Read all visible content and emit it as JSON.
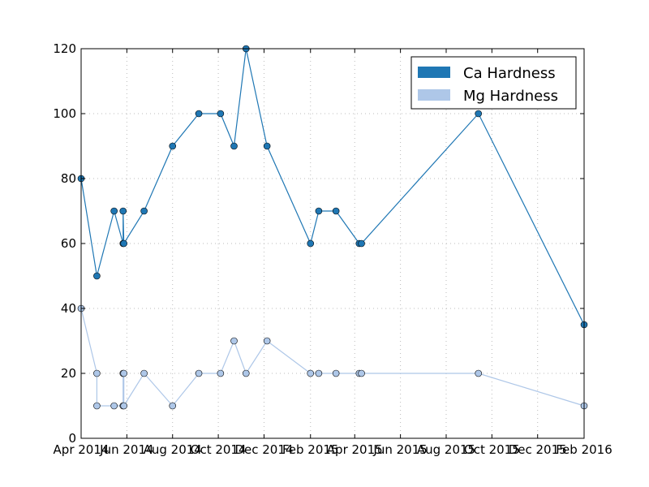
{
  "chart_data": {
    "type": "line",
    "title": "",
    "xlabel": "",
    "ylabel": "",
    "x_range": [
      "2014-04-01",
      "2016-02-01"
    ],
    "ylim": [
      0,
      120
    ],
    "y_ticks": [
      0,
      20,
      40,
      60,
      80,
      100,
      120
    ],
    "x_ticks": [
      {
        "date": "2014-04-01",
        "label": "Apr 2014"
      },
      {
        "date": "2014-06-01",
        "label": "Jun 2014"
      },
      {
        "date": "2014-08-01",
        "label": "Aug 2014"
      },
      {
        "date": "2014-10-01",
        "label": "Oct 2014"
      },
      {
        "date": "2014-12-01",
        "label": "Dec 2014"
      },
      {
        "date": "2015-02-01",
        "label": "Feb 2015"
      },
      {
        "date": "2015-04-01",
        "label": "Apr 2015"
      },
      {
        "date": "2015-06-01",
        "label": "Jun 2015"
      },
      {
        "date": "2015-08-01",
        "label": "Aug 2015"
      },
      {
        "date": "2015-10-01",
        "label": "Oct 2015"
      },
      {
        "date": "2015-12-01",
        "label": "Dec 2015"
      },
      {
        "date": "2016-02-01",
        "label": "Feb 2016"
      }
    ],
    "grid": true,
    "legend_position": "top-right",
    "series": [
      {
        "name": "Ca Hardness",
        "color": "#1f77b4",
        "points": [
          {
            "x": "2014-04-01",
            "y": 80
          },
          {
            "x": "2014-04-22",
            "y": 50
          },
          {
            "x": "2014-05-15",
            "y": 70
          },
          {
            "x": "2014-05-27",
            "y": 60
          },
          {
            "x": "2014-05-27",
            "y": 70
          },
          {
            "x": "2014-05-28",
            "y": 60
          },
          {
            "x": "2014-06-24",
            "y": 70
          },
          {
            "x": "2014-08-01",
            "y": 90
          },
          {
            "x": "2014-09-05",
            "y": 100
          },
          {
            "x": "2014-10-04",
            "y": 100
          },
          {
            "x": "2014-10-22",
            "y": 90
          },
          {
            "x": "2014-11-07",
            "y": 120
          },
          {
            "x": "2014-12-05",
            "y": 90
          },
          {
            "x": "2015-02-01",
            "y": 60
          },
          {
            "x": "2015-02-12",
            "y": 70
          },
          {
            "x": "2015-03-07",
            "y": 70
          },
          {
            "x": "2015-04-07",
            "y": 60
          },
          {
            "x": "2015-04-10",
            "y": 60
          },
          {
            "x": "2015-09-13",
            "y": 100
          },
          {
            "x": "2016-02-01",
            "y": 35
          }
        ]
      },
      {
        "name": "Mg Hardness",
        "color": "#aec7e8",
        "points": [
          {
            "x": "2014-04-01",
            "y": 40
          },
          {
            "x": "2014-04-22",
            "y": 20
          },
          {
            "x": "2014-04-22",
            "y": 10
          },
          {
            "x": "2014-05-15",
            "y": 10
          },
          {
            "x": "2014-05-27",
            "y": 10
          },
          {
            "x": "2014-05-27",
            "y": 20
          },
          {
            "x": "2014-05-28",
            "y": 20
          },
          {
            "x": "2014-05-28",
            "y": 10
          },
          {
            "x": "2014-06-24",
            "y": 20
          },
          {
            "x": "2014-08-01",
            "y": 10
          },
          {
            "x": "2014-09-05",
            "y": 20
          },
          {
            "x": "2014-10-04",
            "y": 20
          },
          {
            "x": "2014-10-22",
            "y": 30
          },
          {
            "x": "2014-11-07",
            "y": 20
          },
          {
            "x": "2014-12-05",
            "y": 30
          },
          {
            "x": "2015-02-01",
            "y": 20
          },
          {
            "x": "2015-02-12",
            "y": 20
          },
          {
            "x": "2015-03-07",
            "y": 20
          },
          {
            "x": "2015-04-07",
            "y": 20
          },
          {
            "x": "2015-04-10",
            "y": 20
          },
          {
            "x": "2015-09-13",
            "y": 20
          },
          {
            "x": "2016-02-01",
            "y": 10
          }
        ]
      }
    ]
  }
}
